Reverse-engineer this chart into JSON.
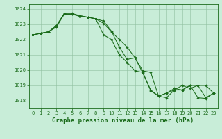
{
  "xlabel": "Graphe pression niveau de la mer (hPa)",
  "ylim": [
    1017.5,
    1024.3
  ],
  "xlim": [
    -0.5,
    23.5
  ],
  "yticks": [
    1018,
    1019,
    1020,
    1021,
    1022,
    1023,
    1024
  ],
  "xticks": [
    0,
    1,
    2,
    3,
    4,
    5,
    6,
    7,
    8,
    9,
    10,
    11,
    12,
    13,
    14,
    15,
    16,
    17,
    18,
    19,
    20,
    21,
    22,
    23
  ],
  "bg_color": "#c8edd8",
  "grid_color": "#90c0a0",
  "line_color": "#1a6b1a",
  "series": [
    {
      "x": [
        0,
        1,
        2,
        3,
        4,
        5,
        6,
        7,
        8,
        9,
        10,
        11,
        12,
        13,
        14,
        15,
        16,
        17,
        18,
        19,
        20,
        21,
        22,
        23
      ],
      "y": [
        1022.3,
        1022.4,
        1022.5,
        1022.8,
        1023.65,
        1023.65,
        1023.55,
        1023.45,
        1023.35,
        1023.05,
        1022.5,
        1022.0,
        1021.5,
        1020.8,
        1019.8,
        1018.7,
        1018.3,
        1018.5,
        1018.7,
        1018.7,
        1019.0,
        1019.0,
        1018.2,
        1018.5
      ]
    },
    {
      "x": [
        0,
        1,
        2,
        3,
        4,
        5,
        6,
        7,
        8,
        9,
        10,
        11,
        12,
        13,
        14,
        15,
        16,
        17,
        18,
        19,
        20,
        21,
        22,
        23
      ],
      "y": [
        1022.3,
        1022.4,
        1022.5,
        1022.9,
        1023.7,
        1023.7,
        1023.55,
        1023.45,
        1023.35,
        1022.3,
        1022.0,
        1021.0,
        1020.5,
        1019.95,
        1019.85,
        1018.65,
        1018.3,
        1018.5,
        1018.8,
        1018.7,
        1019.0,
        1018.2,
        1018.15,
        1018.5
      ]
    },
    {
      "x": [
        0,
        1,
        2,
        3,
        4,
        5,
        6,
        7,
        8,
        9,
        10,
        11,
        12,
        13,
        14,
        15,
        16,
        17,
        18,
        19,
        20,
        21,
        22,
        23
      ],
      "y": [
        1022.3,
        1022.4,
        1022.5,
        1022.9,
        1023.65,
        1023.65,
        1023.5,
        1023.45,
        1023.35,
        1023.2,
        1022.55,
        1021.5,
        1020.7,
        1020.8,
        1019.95,
        1019.85,
        1018.3,
        1018.2,
        1018.7,
        1019.0,
        1018.8,
        1019.0,
        1019.0,
        1018.5
      ]
    }
  ],
  "font_color": "#1a6b1a",
  "tick_fontsize": 5.0,
  "label_fontsize": 6.5,
  "marker": "D",
  "marker_size": 1.8,
  "line_width": 0.75
}
